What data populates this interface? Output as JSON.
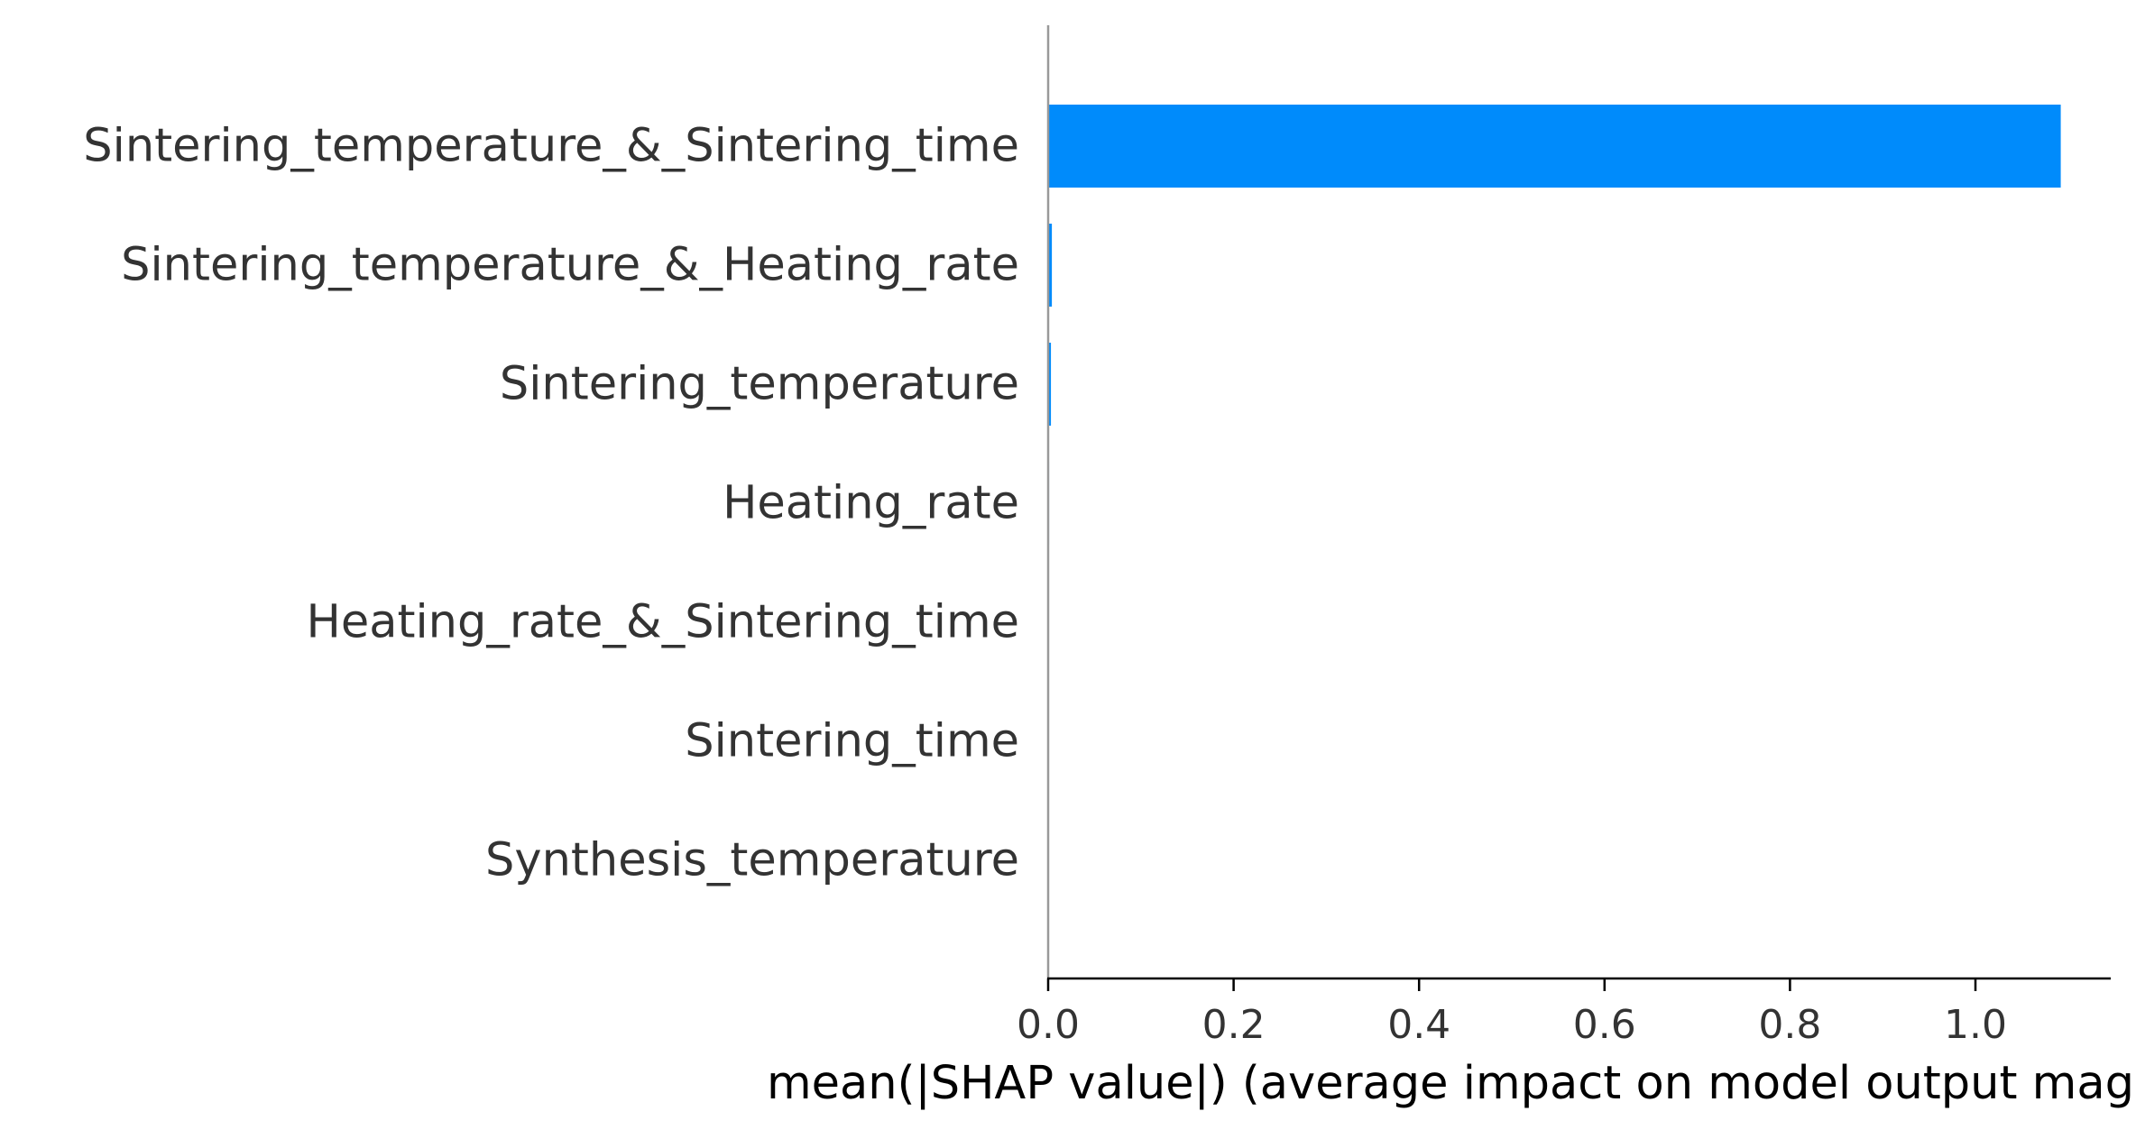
{
  "chart_data": {
    "type": "bar",
    "orientation": "horizontal",
    "categories": [
      "Sintering_temperature_&_Sintering_time",
      "Sintering_temperature_&_Heating_rate",
      "Sintering_temperature",
      "Heating_rate",
      "Heating_rate_&_Sintering_time",
      "Sintering_time",
      "Synthesis_temperature"
    ],
    "values": [
      1.092,
      0.004,
      0.003,
      0.001,
      0.0,
      0.0,
      0.0
    ],
    "xlabel": "mean(|SHAP value|) (average impact on model output magnitude)",
    "ylabel": "",
    "title": "",
    "xlim": [
      0,
      1.146
    ],
    "xticks": [
      0.0,
      0.2,
      0.4,
      0.6,
      0.8,
      1.0
    ],
    "xtick_labels": [
      "0.0",
      "0.2",
      "0.4",
      "0.6",
      "0.8",
      "1.0"
    ],
    "grid": false,
    "legend": "none",
    "colors": {
      "bar": "#008bfb",
      "axis": "#000000",
      "zero_line": "#999999",
      "text": "#333333"
    }
  }
}
